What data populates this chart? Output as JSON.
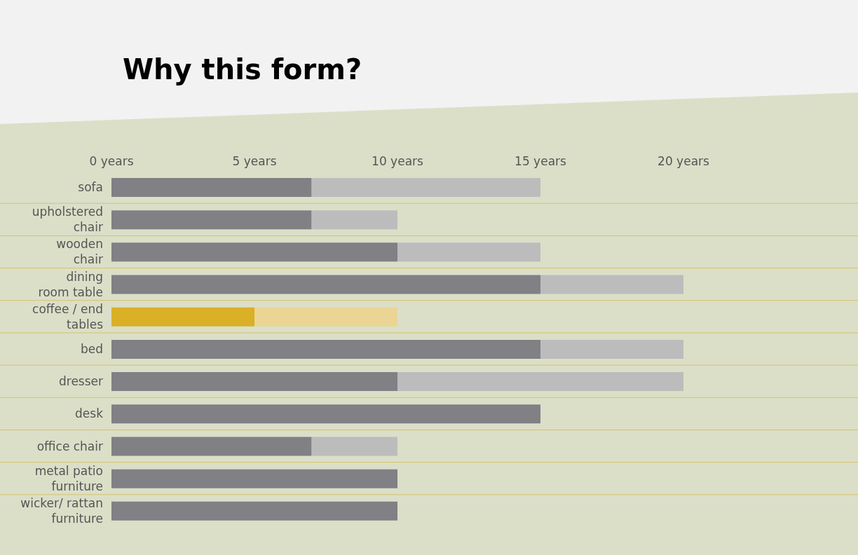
{
  "chart_data": {
    "type": "bar",
    "orientation": "horizontal",
    "stacked": true,
    "title": "Why this form?",
    "categories": [
      "sofa",
      "upholstered\nchair",
      "wooden\nchair",
      "dining\nroom table",
      "coffee / end\ntables",
      "bed",
      "dresser",
      "desk",
      "office chair",
      "metal patio\nfurniture",
      "wicker/ rattan\nfurniture"
    ],
    "series": [
      {
        "colors": [
          "#808085",
          "#808085",
          "#808085",
          "#808085",
          "#d9b026",
          "#808085",
          "#808085",
          "#808085",
          "#808085",
          "#808085",
          "#808085"
        ],
        "values": [
          7,
          7,
          10,
          15,
          5,
          15,
          10,
          15,
          7,
          10,
          10
        ]
      },
      {
        "colors": [
          "#bcbcbc",
          "#bcbcbc",
          "#bcbcbc",
          "#bcbcbc",
          "#ead594",
          "#bcbcbc",
          "#bcbcbc",
          "#bcbcbc",
          "#bcbcbc",
          "#bcbcbc",
          "#bcbcbc"
        ],
        "values": [
          8,
          3,
          5,
          5,
          5,
          5,
          10,
          0,
          3,
          0,
          0
        ]
      }
    ],
    "xlim": [
      0,
      20
    ],
    "xticks": [
      {
        "value": 0,
        "label": "0 years"
      },
      {
        "value": 5,
        "label": "5 years"
      },
      {
        "value": 10,
        "label": "10 years"
      },
      {
        "value": 15,
        "label": "15 years"
      },
      {
        "value": 20,
        "label": "20 years"
      }
    ],
    "grid": "y",
    "legend": false
  }
}
